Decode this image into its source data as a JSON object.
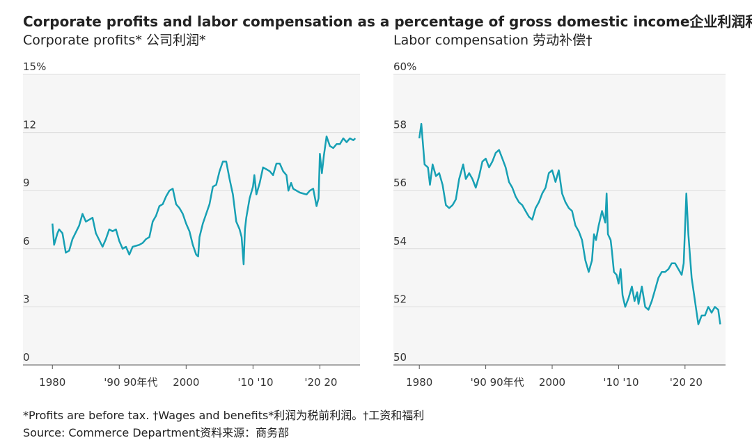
{
  "title": "Corporate profits and labor compensation as a percentage of gross domestic income企业利润和劳动报酬",
  "footnotes": [
    "*Profits are before tax. †Wages and benefits*利润为税前利润。†工资和福利",
    "Source: Commerce Department资料来源：商务部"
  ],
  "chart_data": [
    {
      "type": "line",
      "title": "Corporate profits* 公司利润*",
      "color": "#17a0b4",
      "grid": true,
      "xlim": [
        1975.6,
        2026
      ],
      "ylim": [
        0,
        15
      ],
      "xticks": [
        1980,
        {
          "value": 1990,
          "label": "'90 90年代"
        },
        2000,
        {
          "value": 2010,
          "label": "'10 '10"
        },
        {
          "value": 2020,
          "label": "'20 20"
        }
      ],
      "yticks": [
        {
          "value": 15,
          "label": "15%"
        },
        12,
        9,
        6,
        3,
        0
      ],
      "x": [
        1980,
        1980.25,
        1980.75,
        1981,
        1981.5,
        1982,
        1982.5,
        1983,
        1984,
        1984.5,
        1985,
        1986,
        1986.5,
        1987.5,
        1988,
        1988.5,
        1989,
        1989.5,
        1990,
        1990.5,
        1991,
        1991.5,
        1992,
        1993,
        1993.5,
        1994,
        1994.5,
        1995,
        1995.5,
        1996,
        1996.5,
        1997,
        1997.5,
        1998,
        1998.5,
        1999,
        1999.5,
        2000,
        2000.5,
        2001,
        2001.5,
        2001.8,
        2002,
        2002.5,
        2003,
        2003.5,
        2004,
        2004.5,
        2005,
        2005.5,
        2006,
        2006.5,
        2007,
        2007.5,
        2008,
        2008.3,
        2008.6,
        2008.8,
        2009,
        2009.5,
        2010,
        2010.2,
        2010.5,
        2011,
        2011.5,
        2012,
        2012.5,
        2013,
        2013.5,
        2014,
        2014.5,
        2015,
        2015.3,
        2015.7,
        2016,
        2017,
        2018,
        2018.5,
        2019,
        2019.5,
        2019.8,
        2020,
        2020.3,
        2020.6,
        2021,
        2021.5,
        2022,
        2022.5,
        2023,
        2023.5,
        2024,
        2024.5,
        2025,
        2025.3
      ],
      "values": [
        7.3,
        6.2,
        6.8,
        7.0,
        6.8,
        5.8,
        5.9,
        6.5,
        7.2,
        7.8,
        7.4,
        7.6,
        6.8,
        6.1,
        6.5,
        7.0,
        6.9,
        7.0,
        6.4,
        6.0,
        6.1,
        5.7,
        6.1,
        6.2,
        6.3,
        6.5,
        6.6,
        7.4,
        7.7,
        8.2,
        8.3,
        8.7,
        9.0,
        9.1,
        8.3,
        8.1,
        7.8,
        7.3,
        6.9,
        6.2,
        5.7,
        5.6,
        6.6,
        7.3,
        7.8,
        8.3,
        9.2,
        9.3,
        10.0,
        10.5,
        10.5,
        9.6,
        8.8,
        7.4,
        7.0,
        6.6,
        5.2,
        7.0,
        7.6,
        8.6,
        9.2,
        9.8,
        8.8,
        9.4,
        10.2,
        10.1,
        10.0,
        9.8,
        10.4,
        10.4,
        10.0,
        9.8,
        9.0,
        9.4,
        9.1,
        8.9,
        8.8,
        9.0,
        9.1,
        8.2,
        8.6,
        10.9,
        9.9,
        10.8,
        11.8,
        11.3,
        11.2,
        11.4,
        11.4,
        11.7,
        11.5,
        11.7,
        11.6,
        11.7
      ]
    },
    {
      "type": "line",
      "title": "Labor compensation 劳动补偿†",
      "color": "#17a0b4",
      "grid": true,
      "xlim": [
        1976.1,
        2026.1
      ],
      "ylim": [
        50,
        60
      ],
      "xticks": [
        1980,
        {
          "value": 1990,
          "label": "'90 90年代"
        },
        2000,
        {
          "value": 2010,
          "label": "'10 '10"
        },
        {
          "value": 2020,
          "label": "'20 20"
        }
      ],
      "yticks": [
        {
          "value": 60,
          "label": "60%"
        },
        58,
        56,
        54,
        52,
        50
      ],
      "x": [
        1980,
        1980.3,
        1980.8,
        1981.3,
        1981.6,
        1982,
        1982.5,
        1983,
        1983.5,
        1984,
        1984.5,
        1985,
        1985.5,
        1986,
        1986.6,
        1987,
        1987.5,
        1988,
        1988.5,
        1989,
        1989.5,
        1990,
        1990.5,
        1991,
        1991.5,
        1992,
        1992.5,
        1993,
        1993.5,
        1994,
        1994.5,
        1995,
        1995.5,
        1996,
        1996.5,
        1997,
        1997.5,
        1998,
        1998.5,
        1999,
        1999.5,
        2000,
        2000.5,
        2001,
        2001.5,
        2002,
        2002.5,
        2003,
        2003.5,
        2004,
        2004.5,
        2005,
        2005.5,
        2006,
        2006.3,
        2006.6,
        2007,
        2007.5,
        2008,
        2008.2,
        2008.4,
        2008.8,
        2009,
        2009.3,
        2009.7,
        2010,
        2010.3,
        2010.6,
        2011,
        2011.5,
        2012,
        2012.4,
        2012.8,
        2013,
        2013.5,
        2014,
        2014.5,
        2015,
        2015.5,
        2016,
        2016.5,
        2017,
        2017.5,
        2018,
        2018.5,
        2019,
        2019.5,
        2019.8,
        2020.2,
        2020.5,
        2021,
        2021.5,
        2022,
        2022.5,
        2023,
        2023.5,
        2024,
        2024.5,
        2025,
        2025.3
      ],
      "values": [
        57.8,
        58.3,
        56.9,
        56.8,
        56.2,
        56.9,
        56.5,
        56.6,
        56.2,
        55.5,
        55.4,
        55.5,
        55.7,
        56.4,
        56.9,
        56.4,
        56.6,
        56.4,
        56.1,
        56.5,
        57.0,
        57.1,
        56.8,
        57.0,
        57.3,
        57.4,
        57.1,
        56.8,
        56.3,
        56.1,
        55.8,
        55.6,
        55.5,
        55.3,
        55.1,
        55.0,
        55.4,
        55.6,
        55.9,
        56.1,
        56.6,
        56.7,
        56.3,
        56.7,
        55.9,
        55.6,
        55.4,
        55.3,
        54.8,
        54.6,
        54.3,
        53.6,
        53.2,
        53.6,
        54.5,
        54.3,
        54.8,
        55.3,
        54.9,
        55.9,
        54.5,
        54.3,
        53.9,
        53.2,
        53.1,
        52.8,
        53.3,
        52.4,
        52.0,
        52.3,
        52.7,
        52.2,
        52.5,
        52.1,
        52.7,
        52.0,
        51.9,
        52.2,
        52.6,
        53.0,
        53.2,
        53.2,
        53.3,
        53.5,
        53.5,
        53.3,
        53.1,
        53.5,
        55.9,
        54.5,
        53.0,
        52.2,
        51.4,
        51.7,
        51.7,
        52.0,
        51.8,
        52.0,
        51.9,
        51.4
      ]
    }
  ]
}
